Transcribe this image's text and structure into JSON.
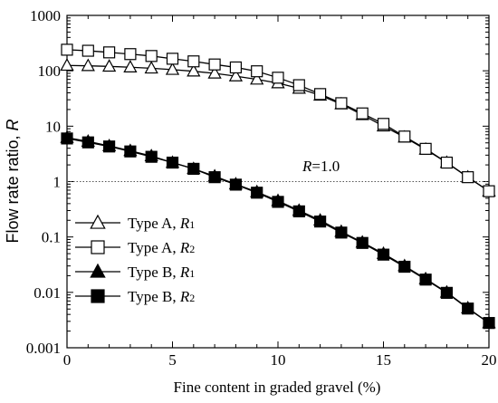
{
  "chart_data": {
    "type": "line",
    "xlabel": "Fine content in graded gravel (%)",
    "ylabel": "Flow rate ratio, ",
    "ylabel_italic": "R",
    "xlim": [
      0,
      20
    ],
    "ylim": [
      0.001,
      1000
    ],
    "yscale": "log",
    "x_ticks": [
      "0",
      "5",
      "10",
      "15",
      "20"
    ],
    "y_ticks": [
      "0.001",
      "0.01",
      "0.1",
      "1",
      "10",
      "100",
      "1000"
    ],
    "reference_line": {
      "y": 1.0,
      "label_italic": "R",
      "label_rest": "=1.0"
    },
    "legend_position": "left",
    "x": [
      0,
      1,
      2,
      3,
      4,
      5,
      6,
      7,
      8,
      9,
      10,
      11,
      12,
      13,
      14,
      15,
      16,
      17,
      18,
      19,
      20
    ],
    "series": [
      {
        "name": "Type A, R1",
        "name_prefix": "Type A, ",
        "name_var": "R",
        "name_sub": "1",
        "marker": "triangle",
        "filled": false,
        "values": [
          125,
          123,
          120,
          116,
          111,
          105,
          98,
          90,
          80,
          70,
          60,
          48,
          36,
          25,
          16,
          10,
          6.3,
          3.8,
          2.2,
          1.2,
          0.67
        ]
      },
      {
        "name": "Type A, R2",
        "name_prefix": "Type A, ",
        "name_var": "R",
        "name_sub": "2",
        "marker": "square",
        "filled": false,
        "values": [
          240,
          230,
          215,
          200,
          185,
          165,
          148,
          130,
          115,
          98,
          75,
          55,
          38,
          26,
          17,
          11,
          6.5,
          3.9,
          2.2,
          1.2,
          0.67
        ]
      },
      {
        "name": "Type B, R1",
        "name_prefix": "Type B, ",
        "name_var": "R",
        "name_sub": "1",
        "marker": "triangle",
        "filled": true,
        "values": [
          6.2,
          5.3,
          4.4,
          3.6,
          2.9,
          2.2,
          1.7,
          1.25,
          0.9,
          0.65,
          0.45,
          0.3,
          0.2,
          0.125,
          0.08,
          0.05,
          0.03,
          0.0175,
          0.01,
          0.0052,
          0.0028
        ]
      },
      {
        "name": "Type B, R2",
        "name_prefix": "Type B, ",
        "name_var": "R",
        "name_sub": "2",
        "marker": "square",
        "filled": true,
        "values": [
          6.0,
          5.1,
          4.3,
          3.5,
          2.8,
          2.2,
          1.7,
          1.2,
          0.88,
          0.63,
          0.43,
          0.29,
          0.19,
          0.12,
          0.078,
          0.048,
          0.029,
          0.017,
          0.0098,
          0.0051,
          0.0028
        ]
      }
    ]
  }
}
